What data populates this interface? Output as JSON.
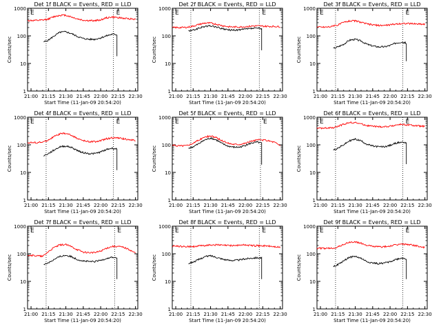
{
  "figure": {
    "time_labels": [
      "21:00",
      "21:15",
      "21:30",
      "21:45",
      "22:00",
      "22:15",
      "22:30"
    ],
    "ylabel": "Counts/sec",
    "xlabel": "Start Time (11-Jan-09 20:54:20)",
    "y_tick_labels": [
      "1",
      "10",
      "100",
      "1000"
    ],
    "flag_label": "E",
    "colors": {
      "events": "#000000",
      "lld": "#ff0000",
      "axes": "#000000"
    }
  },
  "chart_data": [
    {
      "type": "line",
      "title": "Det 1f BLACK = Events, RED = LLD",
      "xlabel": "Start Time (11-Jan-09 20:54:20)",
      "ylabel": "Counts/sec",
      "yscale": "log",
      "ylim": [
        1,
        1000
      ],
      "xlim": [
        "20:57",
        "22:32"
      ],
      "vlines": [
        "21:13",
        "22:11"
      ],
      "series": [
        {
          "name": "Events",
          "x": [
            "21:11",
            "21:15",
            "21:20",
            "21:25",
            "21:30",
            "21:35",
            "21:40",
            "21:45",
            "21:50",
            "21:55",
            "22:00",
            "22:05",
            "22:10",
            "22:14"
          ],
          "values": [
            60,
            70,
            100,
            135,
            140,
            120,
            95,
            80,
            75,
            75,
            85,
            100,
            115,
            110
          ]
        },
        {
          "name": "LLD",
          "x": [
            "20:57",
            "21:05",
            "21:10",
            "21:15",
            "21:20",
            "21:25",
            "21:30",
            "21:35",
            "21:40",
            "21:45",
            "21:50",
            "21:55",
            "22:00",
            "22:05",
            "22:10",
            "22:15",
            "22:20",
            "22:25",
            "22:30"
          ],
          "values": [
            360,
            360,
            370,
            410,
            500,
            560,
            560,
            480,
            410,
            370,
            355,
            355,
            380,
            450,
            480,
            460,
            430,
            420,
            400
          ]
        }
      ]
    },
    {
      "type": "line",
      "title": "Det 2f BLACK = Events, RED = LLD",
      "xlabel": "Start Time (11-Jan-09 20:54:20)",
      "ylabel": "Counts/sec",
      "yscale": "log",
      "ylim": [
        1,
        1000
      ],
      "xlim": [
        "20:57",
        "22:32"
      ],
      "vlines": [
        "21:13",
        "22:12"
      ],
      "series": [
        {
          "name": "Events",
          "x": [
            "21:11",
            "21:15",
            "21:20",
            "21:25",
            "21:30",
            "21:35",
            "21:40",
            "21:45",
            "21:50",
            "21:55",
            "22:00",
            "22:05",
            "22:10",
            "22:14"
          ],
          "values": [
            150,
            160,
            190,
            220,
            230,
            210,
            180,
            165,
            160,
            165,
            175,
            185,
            190,
            180
          ]
        },
        {
          "name": "LLD",
          "x": [
            "20:57",
            "21:05",
            "21:10",
            "21:15",
            "21:20",
            "21:25",
            "21:30",
            "21:35",
            "21:40",
            "21:45",
            "21:50",
            "21:55",
            "22:00",
            "22:05",
            "22:10",
            "22:15",
            "22:20",
            "22:25",
            "22:30"
          ],
          "values": [
            200,
            200,
            205,
            225,
            260,
            290,
            290,
            265,
            235,
            215,
            210,
            210,
            215,
            225,
            230,
            225,
            220,
            220,
            215
          ]
        }
      ]
    },
    {
      "type": "line",
      "title": "Det 3f BLACK = Events, RED = LLD",
      "xlabel": "Start Time (11-Jan-09 20:54:20)",
      "ylabel": "Counts/sec",
      "yscale": "log",
      "ylim": [
        1,
        1000
      ],
      "xlim": [
        "20:57",
        "22:32"
      ],
      "vlines": [
        "21:13",
        "22:11"
      ],
      "series": [
        {
          "name": "Events",
          "x": [
            "21:11",
            "21:15",
            "21:20",
            "21:25",
            "21:30",
            "21:35",
            "21:40",
            "21:45",
            "21:50",
            "21:55",
            "22:00",
            "22:05",
            "22:10",
            "22:14"
          ],
          "values": [
            35,
            40,
            50,
            70,
            75,
            65,
            50,
            43,
            40,
            40,
            45,
            55,
            60,
            55
          ]
        },
        {
          "name": "LLD",
          "x": [
            "20:57",
            "21:05",
            "21:10",
            "21:15",
            "21:20",
            "21:25",
            "21:30",
            "21:35",
            "21:40",
            "21:45",
            "21:50",
            "21:55",
            "22:00",
            "22:05",
            "22:10",
            "22:15",
            "22:20",
            "22:25",
            "22:30"
          ],
          "values": [
            210,
            210,
            220,
            250,
            310,
            350,
            350,
            310,
            270,
            250,
            240,
            240,
            250,
            270,
            280,
            280,
            275,
            270,
            265
          ]
        }
      ]
    },
    {
      "type": "line",
      "title": "Det 4f BLACK = Events, RED = LLD",
      "xlabel": "Start Time (11-Jan-09 20:54:20)",
      "ylabel": "Counts/sec",
      "yscale": "log",
      "ylim": [
        1,
        1000
      ],
      "xlim": [
        "20:57",
        "22:32"
      ],
      "vlines": [
        "21:13",
        "22:11"
      ],
      "series": [
        {
          "name": "Events",
          "x": [
            "21:11",
            "21:15",
            "21:20",
            "21:25",
            "21:30",
            "21:35",
            "21:40",
            "21:45",
            "21:50",
            "21:55",
            "22:00",
            "22:05",
            "22:10",
            "22:14"
          ],
          "values": [
            40,
            48,
            65,
            85,
            90,
            80,
            62,
            52,
            48,
            48,
            55,
            68,
            75,
            70
          ]
        },
        {
          "name": "LLD",
          "x": [
            "20:57",
            "21:05",
            "21:10",
            "21:15",
            "21:20",
            "21:25",
            "21:30",
            "21:35",
            "21:40",
            "21:45",
            "21:50",
            "21:55",
            "22:00",
            "22:05",
            "22:10",
            "22:15",
            "22:20",
            "22:25",
            "22:30"
          ],
          "values": [
            120,
            120,
            125,
            150,
            200,
            250,
            260,
            220,
            170,
            140,
            130,
            130,
            140,
            165,
            180,
            175,
            165,
            155,
            140
          ]
        }
      ]
    },
    {
      "type": "line",
      "title": "Det 5f BLACK = Events, RED = LLD",
      "xlabel": "Start Time (11-Jan-09 20:54:20)",
      "ylabel": "Counts/sec",
      "yscale": "log",
      "ylim": [
        1,
        1000
      ],
      "xlim": [
        "20:57",
        "22:32"
      ],
      "vlines": [
        "21:13",
        "22:13"
      ],
      "series": [
        {
          "name": "Events",
          "x": [
            "21:11",
            "21:15",
            "21:20",
            "21:25",
            "21:30",
            "21:35",
            "21:40",
            "21:45",
            "21:50",
            "21:55",
            "22:00",
            "22:05",
            "22:10",
            "22:14"
          ],
          "values": [
            75,
            85,
            110,
            150,
            175,
            150,
            110,
            90,
            82,
            82,
            95,
            115,
            125,
            115
          ]
        },
        {
          "name": "LLD",
          "x": [
            "20:57",
            "21:05",
            "21:10",
            "21:15",
            "21:20",
            "21:25",
            "21:30",
            "21:35",
            "21:40",
            "21:45",
            "21:50",
            "21:55",
            "22:00",
            "22:05",
            "22:10",
            "22:15",
            "22:20",
            "22:25",
            "22:30"
          ],
          "values": [
            95,
            92,
            95,
            115,
            150,
            190,
            210,
            180,
            140,
            115,
            105,
            105,
            115,
            135,
            150,
            150,
            140,
            125,
            95
          ]
        }
      ]
    },
    {
      "type": "line",
      "title": "Det 6f BLACK = Events, RED = LLD",
      "xlabel": "Start Time (11-Jan-09 20:54:20)",
      "ylabel": "Counts/sec",
      "yscale": "log",
      "ylim": [
        1,
        1000
      ],
      "xlim": [
        "20:57",
        "22:32"
      ],
      "vlines": [
        "21:13",
        "22:11"
      ],
      "series": [
        {
          "name": "Events",
          "x": [
            "21:11",
            "21:15",
            "21:20",
            "21:25",
            "21:30",
            "21:35",
            "21:40",
            "21:45",
            "21:50",
            "21:55",
            "22:00",
            "22:05",
            "22:10",
            "22:14"
          ],
          "values": [
            65,
            75,
            100,
            140,
            160,
            140,
            105,
            90,
            85,
            85,
            95,
            115,
            125,
            120
          ]
        },
        {
          "name": "LLD",
          "x": [
            "20:57",
            "21:05",
            "21:10",
            "21:15",
            "21:20",
            "21:25",
            "21:30",
            "21:35",
            "21:40",
            "21:45",
            "21:50",
            "21:55",
            "22:00",
            "22:05",
            "22:10",
            "22:15",
            "22:20",
            "22:25",
            "22:30"
          ],
          "values": [
            400,
            400,
            410,
            460,
            560,
            640,
            640,
            570,
            500,
            470,
            450,
            450,
            470,
            520,
            550,
            530,
            500,
            480,
            460
          ]
        }
      ]
    },
    {
      "type": "line",
      "title": "Det 7f BLACK = Events, RED = LLD",
      "xlabel": "Start Time (11-Jan-09 20:54:20)",
      "ylabel": "Counts/sec",
      "yscale": "log",
      "ylim": [
        1,
        1000
      ],
      "xlim": [
        "20:57",
        "22:32"
      ],
      "vlines": [
        "21:13",
        "22:12"
      ],
      "series": [
        {
          "name": "Events",
          "x": [
            "21:11",
            "21:15",
            "21:20",
            "21:25",
            "21:30",
            "21:35",
            "21:40",
            "21:45",
            "21:50",
            "21:55",
            "22:00",
            "22:05",
            "22:10",
            "22:14"
          ],
          "values": [
            40,
            48,
            62,
            80,
            88,
            78,
            62,
            55,
            52,
            52,
            58,
            68,
            75,
            70
          ]
        },
        {
          "name": "LLD",
          "x": [
            "20:57",
            "21:05",
            "21:10",
            "21:15",
            "21:20",
            "21:25",
            "21:30",
            "21:35",
            "21:40",
            "21:45",
            "21:50",
            "21:55",
            "22:00",
            "22:05",
            "22:10",
            "22:15",
            "22:20",
            "22:25",
            "22:30"
          ],
          "values": [
            90,
            85,
            80,
            120,
            170,
            210,
            215,
            180,
            140,
            115,
            110,
            110,
            125,
            160,
            185,
            185,
            170,
            140,
            105
          ]
        }
      ]
    },
    {
      "type": "line",
      "title": "Det 8f BLACK = Events, RED = LLD",
      "xlabel": "Start Time (11-Jan-09 20:54:20)",
      "ylabel": "Counts/sec",
      "yscale": "log",
      "ylim": [
        1,
        1000
      ],
      "xlim": [
        "20:57",
        "22:32"
      ],
      "vlines": [
        "21:13",
        "22:12"
      ],
      "series": [
        {
          "name": "Events",
          "x": [
            "21:11",
            "21:15",
            "21:20",
            "21:25",
            "21:30",
            "21:35",
            "21:40",
            "21:45",
            "21:50",
            "21:55",
            "22:00",
            "22:05",
            "22:10",
            "22:14"
          ],
          "values": [
            45,
            50,
            62,
            78,
            85,
            75,
            65,
            58,
            58,
            60,
            65,
            70,
            72,
            70
          ]
        },
        {
          "name": "LLD",
          "x": [
            "20:57",
            "21:05",
            "21:10",
            "21:15",
            "21:20",
            "21:25",
            "21:30",
            "21:35",
            "21:40",
            "21:45",
            "21:50",
            "21:55",
            "22:00",
            "22:05",
            "22:10",
            "22:15",
            "22:20",
            "22:25",
            "22:30"
          ],
          "values": [
            190,
            185,
            180,
            185,
            190,
            200,
            210,
            210,
            205,
            200,
            200,
            205,
            210,
            200,
            195,
            195,
            190,
            180,
            170
          ]
        }
      ]
    },
    {
      "type": "line",
      "title": "Det 9f BLACK = Events, RED = LLD",
      "xlabel": "Start Time (11-Jan-09 20:54:20)",
      "ylabel": "Counts/sec",
      "yscale": "log",
      "ylim": [
        1,
        1000
      ],
      "xlim": [
        "20:57",
        "22:32"
      ],
      "vlines": [
        "21:13",
        "22:11"
      ],
      "series": [
        {
          "name": "Events",
          "x": [
            "21:11",
            "21:15",
            "21:20",
            "21:25",
            "21:30",
            "21:35",
            "21:40",
            "21:45",
            "21:50",
            "21:55",
            "22:00",
            "22:05",
            "22:10",
            "22:14"
          ],
          "values": [
            35,
            40,
            55,
            75,
            80,
            68,
            52,
            46,
            44,
            46,
            52,
            62,
            70,
            65
          ]
        },
        {
          "name": "LLD",
          "x": [
            "20:57",
            "21:05",
            "21:10",
            "21:15",
            "21:20",
            "21:25",
            "21:30",
            "21:35",
            "21:40",
            "21:45",
            "21:50",
            "21:55",
            "22:00",
            "22:05",
            "22:10",
            "22:15",
            "22:20",
            "22:25",
            "22:30"
          ],
          "values": [
            160,
            155,
            158,
            175,
            220,
            260,
            270,
            240,
            205,
            185,
            180,
            180,
            190,
            210,
            225,
            220,
            205,
            185,
            165
          ]
        }
      ]
    }
  ]
}
